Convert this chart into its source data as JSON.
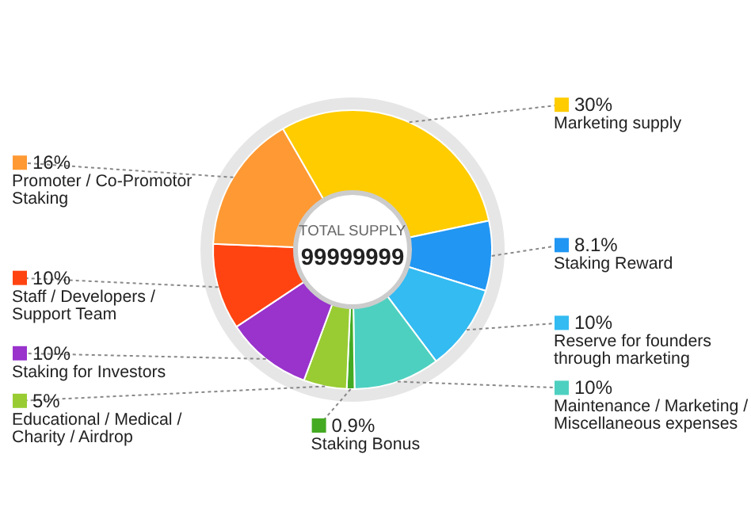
{
  "chart_data": {
    "type": "donut",
    "categories": [
      "Marketing supply",
      "Staking Reward",
      "Reserve for founders through marketing",
      "Maintenance / Marketing / Miscellaneous expenses",
      "Staking Bonus",
      "Educational / Medical / Charity / Airdrop",
      "Staking for Investors",
      "Staff / Developers / Support Team",
      "Promoter / Co-Promotor Staking"
    ],
    "values": [
      30,
      8.1,
      10,
      10,
      0.9,
      5,
      10,
      10,
      16
    ],
    "colors": [
      "#ffcc00",
      "#2196f3",
      "#33bbf2",
      "#4dd0c0",
      "#44aa22",
      "#99cc33",
      "#9933cc",
      "#ff4411",
      "#ff9933"
    ],
    "value_labels": [
      "30%",
      "8.1%",
      "10%",
      "10%",
      "0.9%",
      "5%",
      "10%",
      "10%",
      "16%"
    ],
    "legend": "right",
    "annotations": [
      "TOTAL SUPPLY",
      "99999999"
    ]
  }
}
